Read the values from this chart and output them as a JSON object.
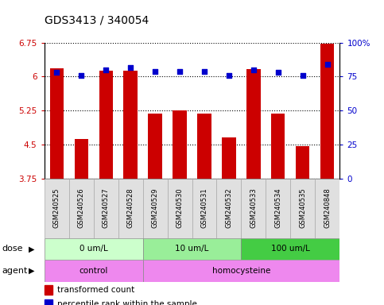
{
  "title": "GDS3413 / 340054",
  "samples": [
    "GSM240525",
    "GSM240526",
    "GSM240527",
    "GSM240528",
    "GSM240529",
    "GSM240530",
    "GSM240531",
    "GSM240532",
    "GSM240533",
    "GSM240534",
    "GSM240535",
    "GSM240848"
  ],
  "bar_values": [
    6.18,
    4.62,
    6.14,
    6.14,
    5.19,
    5.26,
    5.18,
    4.65,
    6.16,
    5.19,
    4.46,
    6.72
  ],
  "dot_percentiles": [
    78,
    76,
    80,
    82,
    79,
    79,
    79,
    76,
    80,
    78,
    76,
    84
  ],
  "bar_color": "#cc0000",
  "dot_color": "#0000cc",
  "ylim": [
    3.75,
    6.75
  ],
  "yticks": [
    3.75,
    4.5,
    5.25,
    6.0,
    6.75
  ],
  "ytick_labels": [
    "3.75",
    "4.5",
    "5.25",
    "6",
    "6.75"
  ],
  "right_yticks": [
    0,
    25,
    50,
    75,
    100
  ],
  "right_ytick_labels": [
    "0",
    "25",
    "50",
    "75",
    "100%"
  ],
  "dose_groups": [
    {
      "label": "0 um/L",
      "start": 0,
      "end": 4,
      "color": "#ccffcc"
    },
    {
      "label": "10 um/L",
      "start": 4,
      "end": 8,
      "color": "#99ee99"
    },
    {
      "label": "100 um/L",
      "start": 8,
      "end": 12,
      "color": "#44cc44"
    }
  ],
  "legend_bar_label": "transformed count",
  "legend_dot_label": "percentile rank within the sample",
  "bar_width": 0.55,
  "background_color": "#ffffff",
  "tick_label_color_left": "#cc0000",
  "tick_label_color_right": "#0000cc"
}
